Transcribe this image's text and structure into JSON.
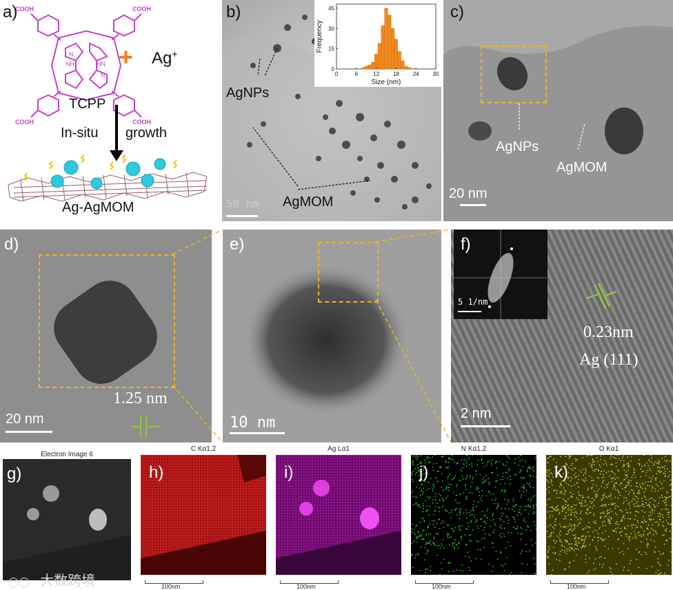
{
  "panel_a": {
    "label": "a)",
    "reactant": "TCPP",
    "plus": "+",
    "ion": "Ag",
    "ion_charge": "+",
    "arrow_left": "In-situ",
    "arrow_right": "growth",
    "product": "Ag-AgMOM",
    "cooh": "COOH",
    "nh": "NH",
    "hn": "HN",
    "n": "N",
    "colors": {
      "porphyrin": "#c83fc8",
      "plus": "#f07d22",
      "sphere": "#2ec8e0",
      "lightning": "#f5c400"
    }
  },
  "panel_b": {
    "label": "b)",
    "annotation_np": "AgNPs",
    "annotation_mom": "AgMOM",
    "scale": "50 nm",
    "inset": {
      "chart_data": {
        "type": "bar",
        "xlabel": "Size (nm)",
        "ylabel": "Frequency",
        "xlim": [
          0,
          30
        ],
        "ylim": [
          0,
          48
        ],
        "xticks": [
          "0",
          "6",
          "12",
          "18",
          "24",
          "30"
        ],
        "yticks": [
          "0",
          "15",
          "30",
          "45"
        ],
        "bin_centers": [
          7,
          8,
          9,
          10,
          11,
          12,
          13,
          14,
          15,
          16,
          17,
          18,
          19,
          20,
          21,
          22
        ],
        "values": [
          0,
          1,
          2,
          3,
          5,
          11,
          19,
          32,
          45,
          40,
          30,
          22,
          13,
          6,
          2,
          1
        ],
        "color": "#f08a1e"
      }
    }
  },
  "panel_c": {
    "label": "c)",
    "annotation_np": "AgNPs",
    "annotation_mom": "AgMOM",
    "scale": "20 nm"
  },
  "panel_d": {
    "label": "d)",
    "lattice": "1.25 nm",
    "scale": "20 nm"
  },
  "panel_e": {
    "label": "e)",
    "scale": "10 nm"
  },
  "panel_f": {
    "label": "f)",
    "inset_scale": "5 1/nm",
    "d_spacing": "0.23nm",
    "plane": "Ag (111)",
    "scale": "2 nm"
  },
  "maps": [
    {
      "label": "g)",
      "title": "Electron Image 6",
      "color": "#9a9a9a",
      "bg": "#2a2a2a",
      "scale": ""
    },
    {
      "label": "h)",
      "title": "C Kα1,2",
      "color": "#d42020",
      "bg": "#6a0a0a",
      "scale": "100nm"
    },
    {
      "label": "i)",
      "title": "Ag Lα1",
      "color": "#d030d0",
      "bg": "#5a085a",
      "scale": "100nm"
    },
    {
      "label": "j)",
      "title": "N Kα1,2",
      "color": "#30d030",
      "bg": "#000000",
      "scale": "100nm"
    },
    {
      "label": "k)",
      "title": "O Kα1",
      "color": "#d0d030",
      "bg": "#3a3a00",
      "scale": "100nm"
    }
  ],
  "watermark": "大数跨境"
}
